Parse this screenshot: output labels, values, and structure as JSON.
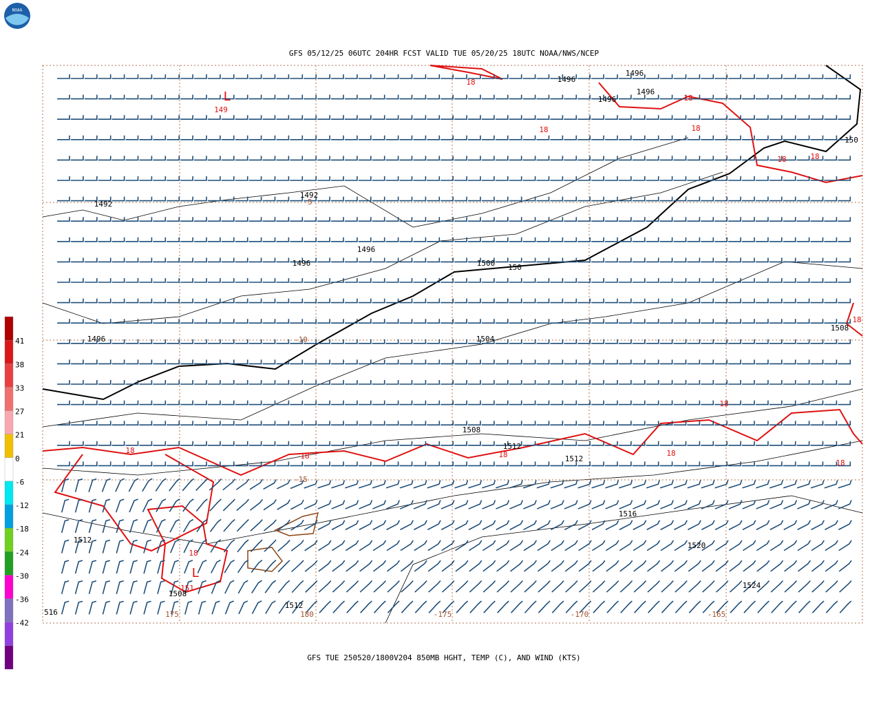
{
  "header": {
    "logo": "NOAA",
    "title": "GFS 05/12/25 06UTC 204HR FCST VALID TUE 05/20/25 18UTC NOAA/NWS/NCEP"
  },
  "footer": {
    "caption": "GFS TUE 250520/1800V204 850MB HGHT, TEMP (C), AND WIND (KTS)"
  },
  "colorbar": {
    "labels": [
      "41",
      "38",
      "33",
      "27",
      "21",
      "0",
      "-6",
      "-12",
      "-18",
      "-24",
      "-30",
      "-36",
      "-42"
    ]
  },
  "height_labels": [
    "1496",
    "1496",
    "1496",
    "1496",
    "1492",
    "1492",
    "1496",
    "1496",
    "1500",
    "150",
    "1496",
    "1504",
    "1508",
    "1508",
    "1512",
    "1512",
    "1516",
    "1520",
    "1524",
    "1512",
    "1508",
    "1512",
    "516",
    "150"
  ],
  "temp_labels": [
    "L",
    "149",
    "18",
    "18",
    "18",
    "18",
    "18",
    "18",
    "18",
    "18",
    "18",
    "18",
    "18",
    "18",
    "18",
    "18",
    "L",
    "151"
  ],
  "isotherm_labels": [
    "-5",
    "-10",
    "-15"
  ],
  "longitude_labels": [
    "175",
    "180",
    "-175",
    "-170",
    "-165"
  ]
}
